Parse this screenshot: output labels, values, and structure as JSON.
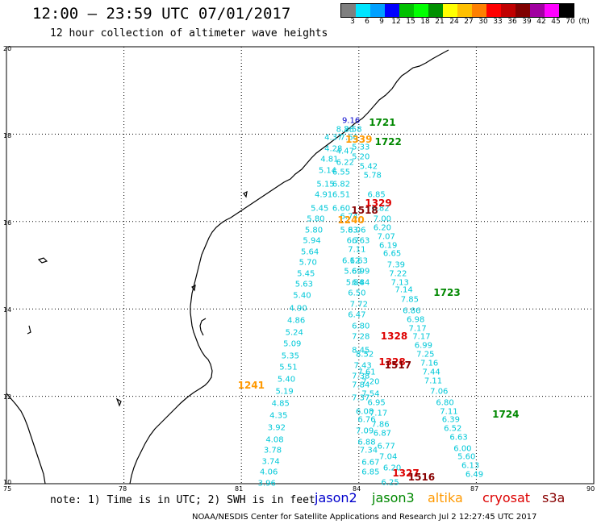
{
  "header": {
    "title": "12:00 – 23:59 UTC 07/01/2017",
    "subtitle": "12 hour collection of altimeter wave heights"
  },
  "legend": {
    "unit": "(ft)",
    "colors": [
      "#7f7f7f",
      "#00e5ff",
      "#00a0ff",
      "#0000ff",
      "#00c000",
      "#00ff00",
      "#009000",
      "#ffff00",
      "#ffc000",
      "#ff8000",
      "#ff0000",
      "#c00000",
      "#800000",
      "#a000a0",
      "#ff00ff",
      "#000000"
    ],
    "labels": [
      "3",
      "6",
      "9",
      "12",
      "15",
      "18",
      "21",
      "24",
      "27",
      "30",
      "33",
      "36",
      "39",
      "42",
      "45",
      "70"
    ]
  },
  "axes": {
    "x_ticks": [
      "75",
      "78",
      "81",
      "84",
      "87",
      "90"
    ],
    "y_ticks": [
      "20",
      "18",
      "16",
      "14",
      "12",
      "10"
    ]
  },
  "footer": {
    "note": "note: 1) Time is in UTC; 2) SWH is in feet",
    "satellites": [
      {
        "name": "jason2",
        "color": "#0000cc"
      },
      {
        "name": "jason3",
        "color": "#008800"
      },
      {
        "name": "altika",
        "color": "#ff9900"
      },
      {
        "name": "cryosat",
        "color": "#dd0000"
      },
      {
        "name": "s3a",
        "color": "#880000"
      }
    ],
    "credit": "NOAA/NESDIS Center for Satellite Applications and Research    Jul  2 12:27:45 UTC 2017"
  },
  "track_colors": {
    "wave": "#00c8d8",
    "jason2": "#0000cc",
    "jason3": "#008800",
    "altika": "#ff9900",
    "cryosat": "#dd0000",
    "s3a": "#880000"
  },
  "chart_data": {
    "type": "scatter",
    "title": "12:00 – 23:59 UTC 07/01/2017",
    "subtitle": "12 hour collection of altimeter wave heights",
    "xlim": [
      75,
      90
    ],
    "ylim": [
      10,
      20
    ],
    "time_labels": [
      {
        "text": "1721",
        "lon": 84.6,
        "lat": 18.27,
        "sat": "jason3"
      },
      {
        "text": "1722",
        "lon": 84.75,
        "lat": 17.82,
        "sat": "jason3"
      },
      {
        "text": "1339",
        "lon": 84.0,
        "lat": 17.87,
        "sat": "altika"
      },
      {
        "text": "1329",
        "lon": 84.5,
        "lat": 16.42,
        "sat": "cryosat"
      },
      {
        "text": "1518",
        "lon": 84.15,
        "lat": 16.25,
        "sat": "s3a"
      },
      {
        "text": "1240",
        "lon": 83.8,
        "lat": 16.03,
        "sat": "altika"
      },
      {
        "text": "1723",
        "lon": 86.25,
        "lat": 14.38,
        "sat": "jason3"
      },
      {
        "text": "1328",
        "lon": 84.9,
        "lat": 13.38,
        "sat": "cryosat"
      },
      {
        "text": "1328",
        "lon": 84.85,
        "lat": 12.79,
        "sat": "cryosat"
      },
      {
        "text": "1517",
        "lon": 85.0,
        "lat": 12.72,
        "sat": "s3a"
      },
      {
        "text": "1241",
        "lon": 81.25,
        "lat": 12.26,
        "sat": "altika"
      },
      {
        "text": "1724",
        "lon": 87.75,
        "lat": 11.58,
        "sat": "jason3"
      },
      {
        "text": "1327",
        "lon": 85.2,
        "lat": 10.24,
        "sat": "cryosat"
      },
      {
        "text": "1516",
        "lon": 85.6,
        "lat": 10.14,
        "sat": "s3a"
      }
    ],
    "swh": [
      {
        "lon": 83.8,
        "lat": 18.3,
        "v": "9.16",
        "c": "jason2"
      },
      {
        "lon": 83.65,
        "lat": 18.1,
        "v": "8.28"
      },
      {
        "lon": 83.85,
        "lat": 18.1,
        "v": "8.58"
      },
      {
        "lon": 83.35,
        "lat": 17.92,
        "v": "4.37"
      },
      {
        "lon": 83.75,
        "lat": 17.92,
        "v": "7.66"
      },
      {
        "lon": 83.35,
        "lat": 17.65,
        "v": "4.28"
      },
      {
        "lon": 83.65,
        "lat": 17.6,
        "v": "4.47"
      },
      {
        "lon": 84.05,
        "lat": 17.7,
        "v": "5.33"
      },
      {
        "lon": 83.25,
        "lat": 17.42,
        "v": "4.81"
      },
      {
        "lon": 83.65,
        "lat": 17.35,
        "v": "6.22"
      },
      {
        "lon": 84.05,
        "lat": 17.48,
        "v": "5.20"
      },
      {
        "lon": 83.2,
        "lat": 17.15,
        "v": "5.14"
      },
      {
        "lon": 83.55,
        "lat": 17.12,
        "v": "6.55"
      },
      {
        "lon": 84.25,
        "lat": 17.25,
        "v": "5.42"
      },
      {
        "lon": 83.15,
        "lat": 16.85,
        "v": "5.15"
      },
      {
        "lon": 83.55,
        "lat": 16.85,
        "v": "6.82"
      },
      {
        "lon": 84.35,
        "lat": 17.05,
        "v": "5.78"
      },
      {
        "lon": 83.1,
        "lat": 16.6,
        "v": "4.91"
      },
      {
        "lon": 83.55,
        "lat": 16.6,
        "v": "6.51"
      },
      {
        "lon": 84.45,
        "lat": 16.6,
        "v": "6.85"
      },
      {
        "lon": 83.0,
        "lat": 16.3,
        "v": "5.45"
      },
      {
        "lon": 83.55,
        "lat": 16.3,
        "v": "6.60"
      },
      {
        "lon": 84.55,
        "lat": 16.3,
        "v": "6.82"
      },
      {
        "lon": 82.9,
        "lat": 16.05,
        "v": "5.80"
      },
      {
        "lon": 83.75,
        "lat": 16.1,
        "v": "6.74"
      },
      {
        "lon": 84.6,
        "lat": 16.05,
        "v": "7.00"
      },
      {
        "lon": 82.85,
        "lat": 15.8,
        "v": "5.80"
      },
      {
        "lon": 83.75,
        "lat": 15.8,
        "v": "5.83"
      },
      {
        "lon": 83.95,
        "lat": 15.8,
        "v": "6.06"
      },
      {
        "lon": 84.6,
        "lat": 15.85,
        "v": "6.20"
      },
      {
        "lon": 82.8,
        "lat": 15.55,
        "v": "5.94"
      },
      {
        "lon": 83.85,
        "lat": 15.55,
        "v": "6.7"
      },
      {
        "lon": 84.05,
        "lat": 15.55,
        "v": "6.63"
      },
      {
        "lon": 84.7,
        "lat": 15.65,
        "v": "7.07"
      },
      {
        "lon": 82.75,
        "lat": 15.3,
        "v": "5.64"
      },
      {
        "lon": 83.95,
        "lat": 15.35,
        "v": "7.11"
      },
      {
        "lon": 84.75,
        "lat": 15.45,
        "v": "6.19"
      },
      {
        "lon": 82.7,
        "lat": 15.05,
        "v": "5.70"
      },
      {
        "lon": 83.8,
        "lat": 15.1,
        "v": "6.12"
      },
      {
        "lon": 84.0,
        "lat": 15.1,
        "v": "6.63"
      },
      {
        "lon": 84.85,
        "lat": 15.25,
        "v": "6.65"
      },
      {
        "lon": 82.65,
        "lat": 14.8,
        "v": "5.45"
      },
      {
        "lon": 83.85,
        "lat": 14.85,
        "v": "5.69"
      },
      {
        "lon": 84.05,
        "lat": 14.85,
        "v": "6.99"
      },
      {
        "lon": 84.95,
        "lat": 15.0,
        "v": "7.39"
      },
      {
        "lon": 82.6,
        "lat": 14.55,
        "v": "5.63"
      },
      {
        "lon": 83.9,
        "lat": 14.6,
        "v": "5.84"
      },
      {
        "lon": 84.05,
        "lat": 14.6,
        "v": "6.84"
      },
      {
        "lon": 85.0,
        "lat": 14.8,
        "v": "7.22"
      },
      {
        "lon": 85.05,
        "lat": 14.6,
        "v": "7.13"
      },
      {
        "lon": 82.55,
        "lat": 14.3,
        "v": "5.40"
      },
      {
        "lon": 83.95,
        "lat": 14.35,
        "v": "6.50"
      },
      {
        "lon": 85.15,
        "lat": 14.42,
        "v": "7.14"
      },
      {
        "lon": 82.45,
        "lat": 14.0,
        "v": "4.90"
      },
      {
        "lon": 84.0,
        "lat": 14.1,
        "v": "7.72"
      },
      {
        "lon": 85.3,
        "lat": 14.2,
        "v": "7.85"
      },
      {
        "lon": 82.4,
        "lat": 13.72,
        "v": "4.86"
      },
      {
        "lon": 83.95,
        "lat": 13.85,
        "v": "6.47"
      },
      {
        "lon": 85.35,
        "lat": 13.95,
        "v": "6.86"
      },
      {
        "lon": 82.35,
        "lat": 13.45,
        "v": "5.24"
      },
      {
        "lon": 84.05,
        "lat": 13.6,
        "v": "6.80"
      },
      {
        "lon": 85.45,
        "lat": 13.75,
        "v": "6.98"
      },
      {
        "lon": 82.3,
        "lat": 13.2,
        "v": "5.09"
      },
      {
        "lon": 84.05,
        "lat": 13.35,
        "v": "7.28"
      },
      {
        "lon": 85.5,
        "lat": 13.55,
        "v": "7.17"
      },
      {
        "lon": 82.25,
        "lat": 12.92,
        "v": "5.35"
      },
      {
        "lon": 84.05,
        "lat": 13.05,
        "v": "8.45"
      },
      {
        "lon": 85.6,
        "lat": 13.35,
        "v": "7.17"
      },
      {
        "lon": 82.2,
        "lat": 12.65,
        "v": "5.51"
      },
      {
        "lon": 84.15,
        "lat": 12.95,
        "v": "8.52"
      },
      {
        "lon": 85.65,
        "lat": 13.15,
        "v": "6.99"
      },
      {
        "lon": 82.15,
        "lat": 12.38,
        "v": "5.40"
      },
      {
        "lon": 84.1,
        "lat": 12.7,
        "v": "7.43"
      },
      {
        "lon": 85.7,
        "lat": 12.95,
        "v": "7.25"
      },
      {
        "lon": 82.1,
        "lat": 12.1,
        "v": "5.19"
      },
      {
        "lon": 84.2,
        "lat": 12.55,
        "v": "7.61"
      },
      {
        "lon": 85.8,
        "lat": 12.75,
        "v": "7.16"
      },
      {
        "lon": 82.0,
        "lat": 11.82,
        "v": "4.85"
      },
      {
        "lon": 84.05,
        "lat": 12.45,
        "v": "7.38"
      },
      {
        "lon": 84.3,
        "lat": 12.32,
        "v": "7.20"
      },
      {
        "lon": 85.85,
        "lat": 12.55,
        "v": "7.44"
      },
      {
        "lon": 81.95,
        "lat": 11.55,
        "v": "4.35"
      },
      {
        "lon": 84.05,
        "lat": 12.25,
        "v": "7.84"
      },
      {
        "lon": 84.3,
        "lat": 12.05,
        "v": "7.54"
      },
      {
        "lon": 85.9,
        "lat": 12.35,
        "v": "7.11"
      },
      {
        "lon": 81.9,
        "lat": 11.28,
        "v": "3.92"
      },
      {
        "lon": 84.05,
        "lat": 11.95,
        "v": "7.37"
      },
      {
        "lon": 84.45,
        "lat": 11.85,
        "v": "6.95"
      },
      {
        "lon": 86.05,
        "lat": 12.1,
        "v": "7.06"
      },
      {
        "lon": 81.85,
        "lat": 11.0,
        "v": "4.08"
      },
      {
        "lon": 84.15,
        "lat": 11.65,
        "v": "6.08"
      },
      {
        "lon": 84.5,
        "lat": 11.6,
        "v": "7.17"
      },
      {
        "lon": 86.2,
        "lat": 11.85,
        "v": "6.80"
      },
      {
        "lon": 81.8,
        "lat": 10.75,
        "v": "3.78"
      },
      {
        "lon": 84.2,
        "lat": 11.45,
        "v": "6.76"
      },
      {
        "lon": 84.55,
        "lat": 11.35,
        "v": "7.86"
      },
      {
        "lon": 86.3,
        "lat": 11.65,
        "v": "7.11"
      },
      {
        "lon": 81.75,
        "lat": 10.5,
        "v": "3.74"
      },
      {
        "lon": 84.15,
        "lat": 11.2,
        "v": "7.09"
      },
      {
        "lon": 84.6,
        "lat": 11.15,
        "v": "6.87"
      },
      {
        "lon": 86.35,
        "lat": 11.45,
        "v": "6.39"
      },
      {
        "lon": 81.7,
        "lat": 10.25,
        "v": "4.06"
      },
      {
        "lon": 84.2,
        "lat": 10.95,
        "v": "6.88"
      },
      {
        "lon": 84.7,
        "lat": 10.85,
        "v": "6.77"
      },
      {
        "lon": 86.4,
        "lat": 11.25,
        "v": "6.52"
      },
      {
        "lon": 81.65,
        "lat": 10.0,
        "v": "3.96"
      },
      {
        "lon": 84.25,
        "lat": 10.75,
        "v": "7.34"
      },
      {
        "lon": 84.75,
        "lat": 10.6,
        "v": "7.04"
      },
      {
        "lon": 86.55,
        "lat": 11.05,
        "v": "6.63"
      },
      {
        "lon": 84.3,
        "lat": 10.48,
        "v": "6.67"
      },
      {
        "lon": 84.85,
        "lat": 10.35,
        "v": "6.20"
      },
      {
        "lon": 86.65,
        "lat": 10.8,
        "v": "6.00"
      },
      {
        "lon": 84.3,
        "lat": 10.25,
        "v": "6.85"
      },
      {
        "lon": 84.8,
        "lat": 10.02,
        "v": "6.25"
      },
      {
        "lon": 86.75,
        "lat": 10.6,
        "v": "5.60"
      },
      {
        "lon": 86.85,
        "lat": 10.4,
        "v": "6.13"
      },
      {
        "lon": 86.95,
        "lat": 10.2,
        "v": "6.49"
      }
    ]
  }
}
